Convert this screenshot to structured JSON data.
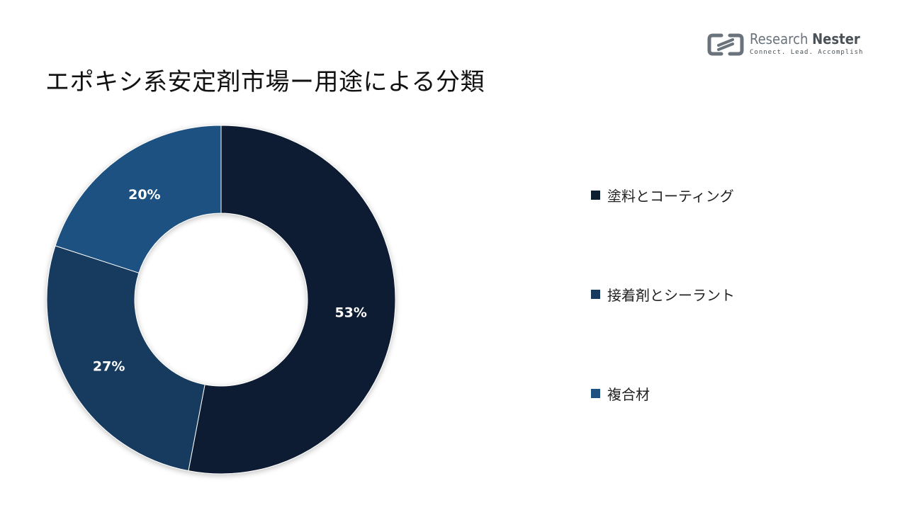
{
  "header": {
    "title": "エポキシ系安定剤市場ー用途による分類"
  },
  "logo": {
    "brand_primary": "Research",
    "brand_secondary": "Nester",
    "tagline": "Connect. Lead. Accomplish",
    "color": "#6a737b"
  },
  "chart_data": {
    "type": "pie",
    "donut": true,
    "categories": [
      "塗料とコーティング",
      "接着剤とシーラント",
      "複合材"
    ],
    "values": [
      53,
      27,
      20
    ],
    "labels": [
      "53%",
      "27%",
      "20%"
    ],
    "colors": [
      "#0d1e30",
      "#173a5e",
      "#1e5182"
    ],
    "legend": "right"
  }
}
